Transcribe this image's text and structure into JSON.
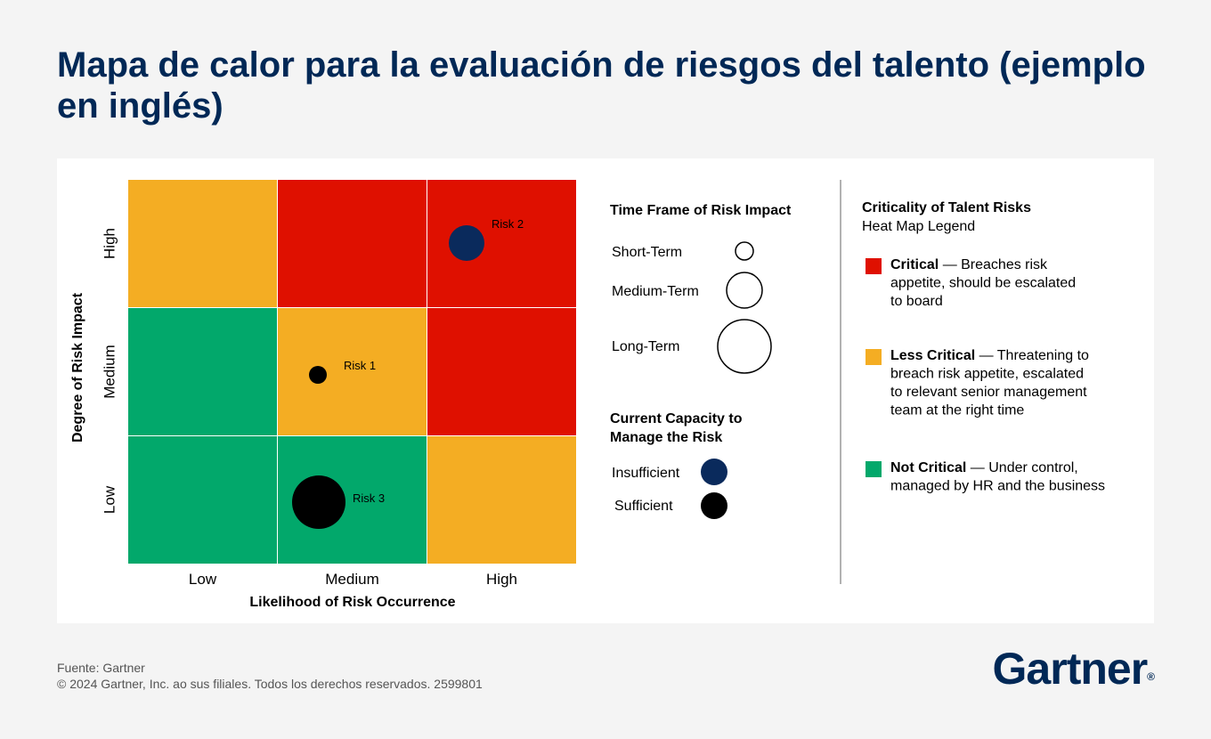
{
  "header": {
    "title": "Mapa de calor para la evaluación de riesgos del talento (ejemplo en inglés)"
  },
  "footer": {
    "source": "Fuente: Gartner",
    "copyright": "© 2024 Gartner, Inc. ao sus filiales. Todos los derechos reservados. 2599801"
  },
  "logo": {
    "text": "Gartner",
    "mark": "®"
  },
  "colors": {
    "critical": "#df1000",
    "less_critical": "#f4ad23",
    "not_critical": "#02a86b",
    "insufficient": "#0a2a5c",
    "sufficient": "#000000",
    "brand": "#002856"
  },
  "chart_data": {
    "type": "heatmap",
    "xlabel": "Likelihood of Risk Occurrence",
    "ylabel": "Degree of Risk Impact",
    "x_categories": [
      "Low",
      "Medium",
      "High"
    ],
    "y_categories": [
      "High",
      "Medium",
      "Low"
    ],
    "cells": [
      [
        "less_critical",
        "critical",
        "critical"
      ],
      [
        "not_critical",
        "less_critical",
        "critical"
      ],
      [
        "not_critical",
        "not_critical",
        "less_critical"
      ]
    ],
    "risks": [
      {
        "label": "Risk 2",
        "likelihood": "High",
        "impact": "High",
        "time_frame": "Medium-Term",
        "capacity": "Insufficient"
      },
      {
        "label": "Risk 1",
        "likelihood": "Medium",
        "impact": "Medium",
        "time_frame": "Short-Term",
        "capacity": "Sufficient"
      },
      {
        "label": "Risk 3",
        "likelihood": "Medium",
        "impact": "Low",
        "time_frame": "Long-Term",
        "capacity": "Sufficient"
      }
    ],
    "time_frame_legend": {
      "title": "Time Frame of Risk Impact",
      "items": [
        "Short-Term",
        "Medium-Term",
        "Long-Term"
      ]
    },
    "capacity_legend": {
      "title_line1": "Current Capacity to",
      "title_line2": "Manage the Risk",
      "items": [
        "Insufficient",
        "Sufficient"
      ]
    },
    "criticality_legend": {
      "title": "Criticality of Talent Risks",
      "subtitle": "Heat Map Legend",
      "items": [
        {
          "key": "critical",
          "label": "Critical",
          "lines": [
            "— Breaches risk",
            "appetite, should be escalated",
            "to board"
          ]
        },
        {
          "key": "less_critical",
          "label": "Less Critical",
          "lines": [
            "— Threatening to",
            "breach risk appetite, escalated",
            "to relevant senior management",
            "team at the right time"
          ]
        },
        {
          "key": "not_critical",
          "label": "Not Critical",
          "lines": [
            "— Under control,",
            "managed by HR and the business"
          ]
        }
      ]
    }
  }
}
